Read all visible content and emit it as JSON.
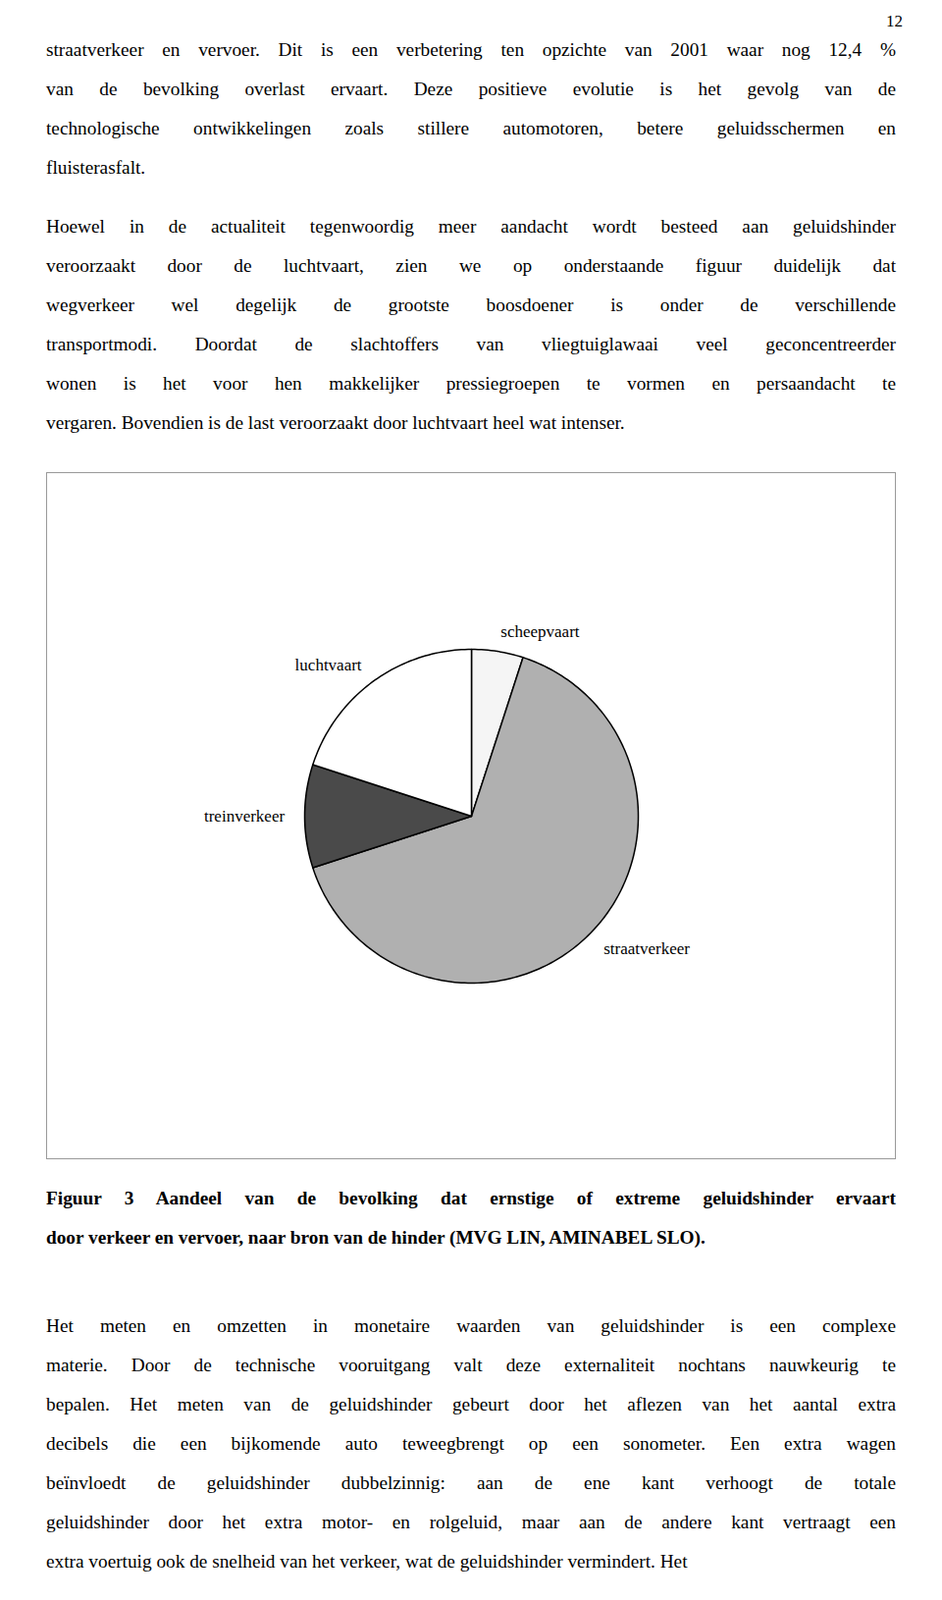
{
  "page_number": "12",
  "paragraphs_before": [
    [
      "straatverkeer en vervoer. Dit is een verbetering ten opzichte van 2001 waar nog 12,4 %",
      "van de bevolking overlast ervaart. Deze positieve evolutie is het gevolg van de",
      "technologische ontwikkelingen zoals stillere automotoren, betere geluidsschermen en",
      "fluisterasfalt."
    ],
    [
      "Hoewel in de actualiteit tegenwoordig meer aandacht wordt besteed aan geluidshinder",
      "veroorzaakt door de luchtvaart, zien we op onderstaande figuur duidelijk dat",
      "wegverkeer wel degelijk de grootste boosdoener is onder de verschillende",
      "transportmodi. Doordat de slachtoffers van vliegtuiglawaai veel geconcentreerder",
      "wonen is het voor hen makkelijker pressiegroepen te vormen en persaandacht te",
      "vergaren. Bovendien is de last veroorzaakt door luchtvaart heel wat intenser."
    ]
  ],
  "chart_data": {
    "type": "pie",
    "categories": [
      "scheepvaart",
      "straatverkeer",
      "treinverkeer",
      "luchtvaart"
    ],
    "values": [
      5,
      65,
      10,
      20
    ],
    "colors": [
      "#f5f5f5",
      "#b0b0b0",
      "#4a4a4a",
      "#ffffff"
    ],
    "caption": [
      "Figuur 3 Aandeel van de bevolking dat ernstige of extreme geluidshinder ervaart",
      "door verkeer en vervoer, naar bron van de hinder (MVG LIN, AMINABEL SLO)."
    ]
  },
  "paragraphs_after": [
    [
      "Het meten en omzetten in monetaire waarden van geluidshinder is een complexe",
      "materie. Door de technische vooruitgang valt deze externaliteit nochtans nauwkeurig te",
      "bepalen. Het meten van de geluidshinder gebeurt door het aflezen van het aantal extra",
      "decibels die een bijkomende auto teweegbrengt op een sonometer. Een extra wagen",
      "beïnvloedt de geluidshinder dubbelzinnig: aan de ene kant verhoogt de totale",
      "geluidshinder door het extra motor- en rolgeluid, maar aan de andere kant vertraagt een",
      "extra voertuig ook de snelheid van het verkeer, wat de geluidshinder vermindert. Het"
    ]
  ]
}
